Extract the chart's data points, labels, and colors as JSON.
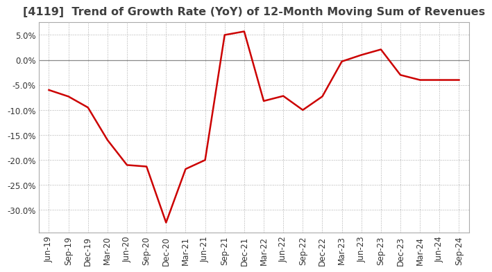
{
  "title": "[4119]  Trend of Growth Rate (YoY) of 12-Month Moving Sum of Revenues",
  "title_color": "#404040",
  "line_color": "#cc0000",
  "background_color": "#ffffff",
  "plot_bg_color": "#ffffff",
  "grid_color": "#aaaaaa",
  "zero_line_color": "#888888",
  "border_color": "#aaaaaa",
  "labels": [
    "Jun-19",
    "Sep-19",
    "Dec-19",
    "Mar-20",
    "Jun-20",
    "Sep-20",
    "Dec-20",
    "Mar-21",
    "Jun-21",
    "Sep-21",
    "Dec-21",
    "Mar-22",
    "Jun-22",
    "Sep-22",
    "Dec-22",
    "Mar-23",
    "Jun-23",
    "Sep-23",
    "Dec-23",
    "Mar-24",
    "Jun-24",
    "Sep-24"
  ],
  "values": [
    -0.06,
    -0.073,
    -0.095,
    -0.16,
    -0.21,
    -0.213,
    -0.325,
    -0.218,
    -0.2,
    0.05,
    0.057,
    -0.082,
    -0.072,
    -0.1,
    -0.073,
    -0.003,
    0.01,
    0.021,
    -0.03,
    -0.04,
    -0.04,
    -0.04
  ],
  "ylim_min": -0.345,
  "ylim_max": 0.075,
  "yticks": [
    0.05,
    0.0,
    -0.05,
    -0.1,
    -0.15,
    -0.2,
    -0.25,
    -0.3
  ],
  "title_fontsize": 11.5,
  "tick_fontsize": 8.5,
  "line_width": 1.8
}
